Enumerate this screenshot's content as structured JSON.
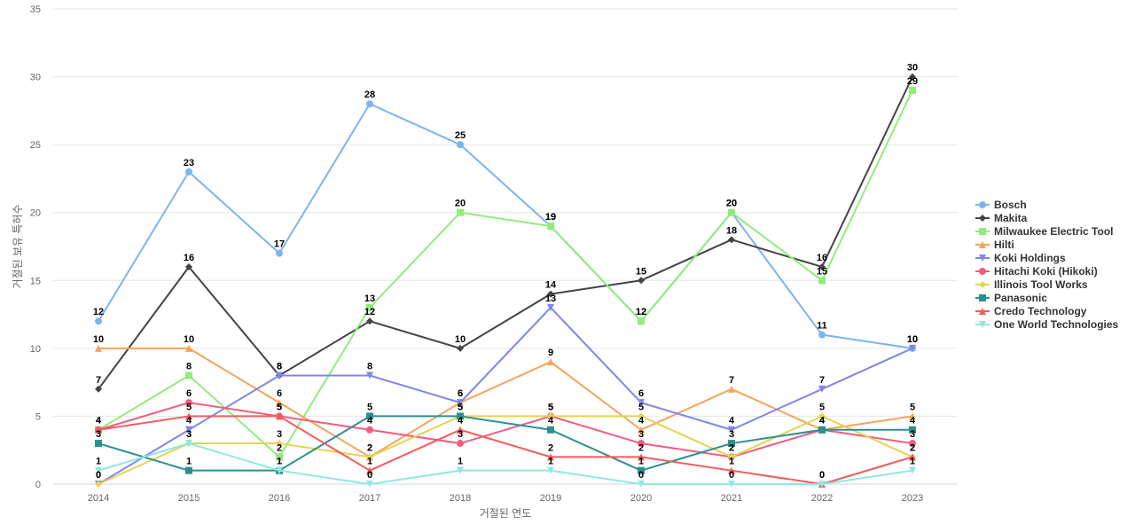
{
  "chart_data": {
    "type": "line",
    "xlabel": "거절된 연도",
    "ylabel": "거절된 보유 특허수",
    "categories": [
      "2014",
      "2015",
      "2016",
      "2017",
      "2018",
      "2019",
      "2020",
      "2021",
      "2022",
      "2023"
    ],
    "ylim": [
      0,
      35
    ],
    "yticks": [
      0,
      5,
      10,
      15,
      20,
      25,
      30,
      35
    ],
    "grid": true,
    "legend_position": "right",
    "series": [
      {
        "name": "Bosch",
        "color": "#7cb5ec",
        "marker": "circle",
        "values": [
          12,
          23,
          17,
          28,
          25,
          19,
          12,
          20,
          11,
          10
        ]
      },
      {
        "name": "Makita",
        "color": "#434348",
        "marker": "diamond",
        "values": [
          7,
          16,
          8,
          12,
          10,
          14,
          15,
          18,
          16,
          30
        ]
      },
      {
        "name": "Milwaukee Electric Tool",
        "color": "#90ed7d",
        "marker": "square",
        "values": [
          4,
          8,
          2,
          13,
          20,
          19,
          12,
          20,
          15,
          29
        ]
      },
      {
        "name": "Hilti",
        "color": "#f7a35c",
        "marker": "triangle",
        "values": [
          10,
          10,
          6,
          2,
          6,
          9,
          4,
          7,
          4,
          5
        ]
      },
      {
        "name": "Koki Holdings",
        "color": "#8085e9",
        "marker": "triangle-down",
        "values": [
          0,
          4,
          8,
          8,
          6,
          13,
          6,
          4,
          7,
          10
        ]
      },
      {
        "name": "Hitachi Koki (Hikoki)",
        "color": "#f15c80",
        "marker": "circle",
        "values": [
          4,
          6,
          5,
          4,
          3,
          5,
          3,
          2,
          4,
          3
        ]
      },
      {
        "name": "Illinois Tool Works",
        "color": "#e4d354",
        "marker": "diamond",
        "values": [
          0,
          3,
          3,
          2,
          5,
          5,
          5,
          2,
          5,
          2
        ]
      },
      {
        "name": "Panasonic",
        "color": "#2b908f",
        "marker": "square",
        "values": [
          3,
          1,
          1,
          5,
          5,
          4,
          1,
          3,
          4,
          4
        ]
      },
      {
        "name": "Credo Technology",
        "color": "#f45b5b",
        "marker": "triangle",
        "values": [
          4,
          5,
          5,
          1,
          4,
          2,
          2,
          1,
          0,
          2
        ]
      },
      {
        "name": "One World Technologies",
        "color": "#91e8e1",
        "marker": "triangle-down",
        "values": [
          1,
          3,
          1,
          0,
          1,
          1,
          0,
          0,
          0,
          1
        ]
      }
    ]
  }
}
